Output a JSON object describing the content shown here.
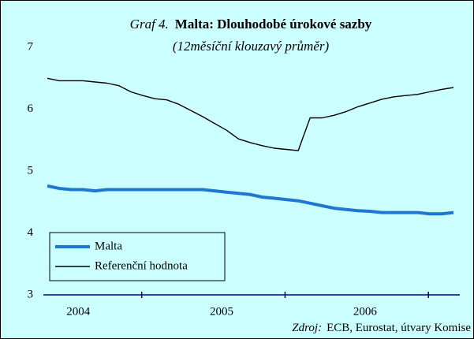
{
  "chart_data": {
    "type": "line",
    "title_label": "Graf 4.",
    "title": "Malta: Dlouhodobé úrokové sazby",
    "subtitle": "(12měsíční klouzavý průměr)",
    "source_label": "Zdroj:",
    "source": "ECB, Eurostat, útvary Komise",
    "categories": [
      null,
      null,
      "2004",
      null,
      null,
      null,
      null,
      null,
      null,
      null,
      null,
      null,
      null,
      null,
      "2005",
      null,
      null,
      null,
      null,
      null,
      null,
      null,
      null,
      null,
      null,
      null,
      "2006",
      null,
      null,
      null,
      null,
      null,
      null,
      null,
      null
    ],
    "series": [
      {
        "name": "Malta",
        "color": "#1f78d0",
        "values": [
          4.76,
          4.72,
          4.7,
          4.7,
          4.68,
          4.7,
          4.7,
          4.7,
          4.7,
          4.7,
          4.7,
          4.7,
          4.7,
          4.7,
          4.68,
          4.66,
          4.64,
          4.62,
          4.58,
          4.56,
          4.54,
          4.52,
          4.48,
          4.44,
          4.4,
          4.38,
          4.36,
          4.35,
          4.33,
          4.33,
          4.33,
          4.33,
          4.31,
          4.31,
          4.33
        ]
      },
      {
        "name": "Referenční hodnota",
        "color": "#000000",
        "values": [
          6.5,
          6.46,
          6.46,
          6.46,
          6.44,
          6.42,
          6.38,
          6.28,
          6.22,
          6.17,
          6.15,
          6.08,
          5.98,
          5.88,
          5.77,
          5.66,
          5.52,
          5.46,
          5.41,
          5.37,
          5.35,
          5.33,
          5.86,
          5.86,
          5.9,
          5.96,
          6.04,
          6.1,
          6.16,
          6.2,
          6.22,
          6.24,
          6.28,
          6.32,
          6.35
        ]
      }
    ],
    "ylim": [
      3,
      7
    ],
    "yticks": [
      3,
      4,
      5,
      6,
      7
    ],
    "legend": "lower left"
  }
}
